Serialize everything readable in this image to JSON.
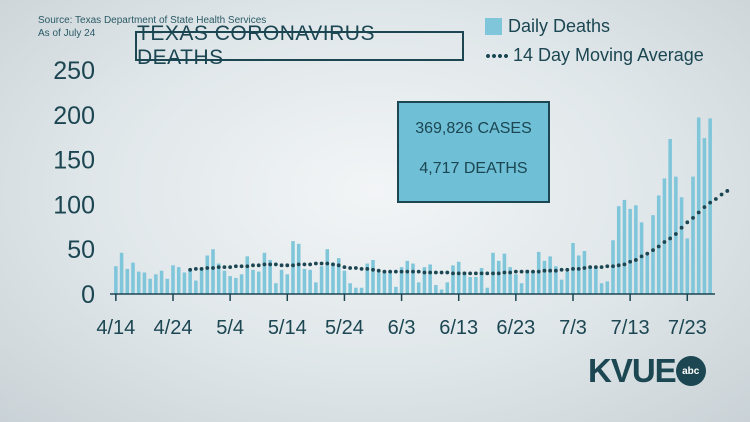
{
  "source": {
    "line1": "Source: Texas Department of State Health Services",
    "line2": "As of July 24"
  },
  "stats": {
    "cases": "369,826 CASES",
    "deaths": "4,717 DEATHS"
  },
  "logo": {
    "text": "KVUE",
    "badge": "abc"
  },
  "colors": {
    "bar": "#7fc6da",
    "line": "#1b4652",
    "box": "#6fbfd6"
  },
  "chart_data": {
    "type": "bar",
    "title": "TEXAS CORONAVIRUS DEATHS",
    "x_tick_labels": [
      "4/14",
      "4/24",
      "5/4",
      "5/14",
      "5/24",
      "6/3",
      "6/13",
      "6/23",
      "7/3",
      "7/13",
      "7/23"
    ],
    "x_start_date": "2020-04-14",
    "ylim": [
      0,
      250
    ],
    "y_ticks": [
      0,
      50,
      100,
      150,
      200,
      250
    ],
    "grid": false,
    "legend_position": "top-right",
    "series": [
      {
        "name": "Daily Deaths",
        "type": "bar",
        "values": [
          31,
          46,
          28,
          35,
          25,
          24,
          17,
          22,
          26,
          17,
          32,
          30,
          24,
          27,
          15,
          29,
          43,
          50,
          34,
          26,
          20,
          18,
          22,
          42,
          27,
          25,
          46,
          38,
          12,
          27,
          22,
          59,
          56,
          28,
          27,
          13,
          31,
          50,
          35,
          40,
          26,
          12,
          7,
          7,
          34,
          38,
          24,
          25,
          24,
          8,
          30,
          37,
          34,
          13,
          30,
          33,
          10,
          5,
          13,
          32,
          36,
          25,
          19,
          19,
          29,
          7,
          46,
          37,
          45,
          30,
          22,
          12,
          27,
          25,
          47,
          37,
          42,
          31,
          16,
          25,
          57,
          43,
          48,
          31,
          29,
          12,
          14,
          60,
          98,
          105,
          95,
          99,
          80,
          43,
          88,
          110,
          129,
          173,
          131,
          108,
          62,
          131,
          197,
          174,
          196
        ]
      },
      {
        "name": "14 Day Moving Average",
        "type": "line",
        "start_index": 13,
        "values": [
          27,
          28,
          28,
          29,
          29,
          30,
          30,
          30,
          31,
          31,
          31,
          32,
          32,
          33,
          33,
          33,
          32,
          32,
          32,
          33,
          33,
          33,
          34,
          34,
          34,
          33,
          32,
          30,
          29,
          29,
          28,
          28,
          27,
          26,
          25,
          25,
          25,
          25,
          25,
          25,
          25,
          24,
          24,
          24,
          24,
          24,
          23,
          23,
          23,
          23,
          23,
          23,
          23,
          23,
          23,
          24,
          24,
          25,
          25,
          25,
          25,
          25,
          26,
          26,
          26,
          27,
          27,
          28,
          28,
          29,
          30,
          30,
          30,
          31,
          31,
          32,
          33,
          36,
          38,
          42,
          45,
          49,
          53,
          58,
          62,
          67,
          74,
          80,
          85,
          91,
          97,
          102,
          106,
          111,
          115
        ]
      }
    ]
  }
}
